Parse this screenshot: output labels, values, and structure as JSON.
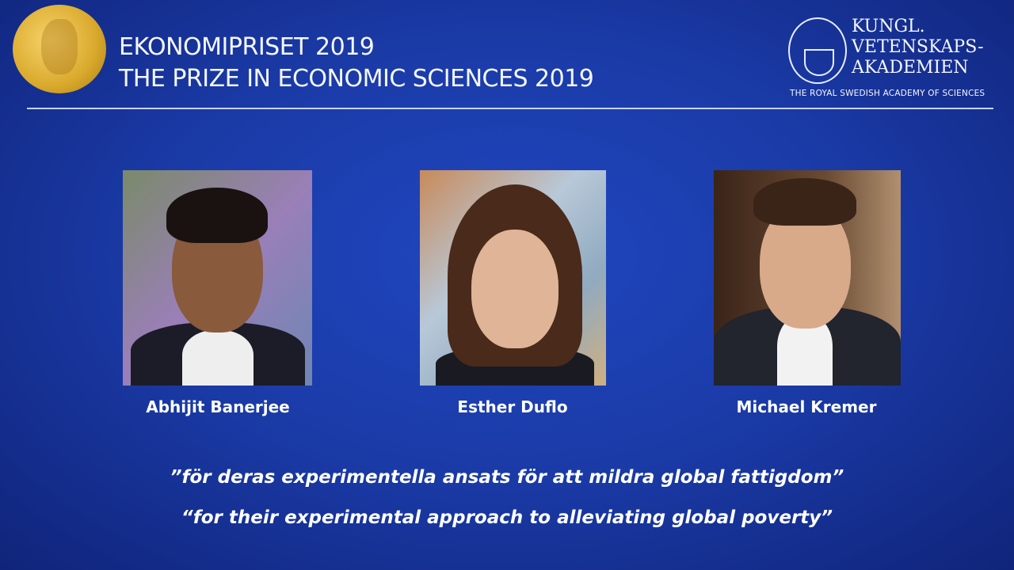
{
  "header": {
    "title_sv": "EKONOMIPRISET 2019",
    "title_en": "THE PRIZE IN ECONOMIC SCIENCES 2019"
  },
  "academy": {
    "line1": "KUNGL.",
    "line2": "VETENSKAPS-",
    "line3": "AKADEMIEN",
    "english": "THE ROYAL SWEDISH ACADEMY OF SCIENCES",
    "seal_text": "KUNGL. VETENSKAPSAKADEMIEN"
  },
  "laureates": [
    {
      "name": "Abhijit Banerjee"
    },
    {
      "name": "Esther Duflo"
    },
    {
      "name": "Michael Kremer"
    }
  ],
  "citation": {
    "sv": "”för deras experimentella ansats för att mildra global fattigdom”",
    "en": "“for their experimental approach to alleviating global poverty”"
  },
  "colors": {
    "background": "#1a3aa6",
    "medal": "#d9a92c",
    "text": "#ffffff"
  }
}
